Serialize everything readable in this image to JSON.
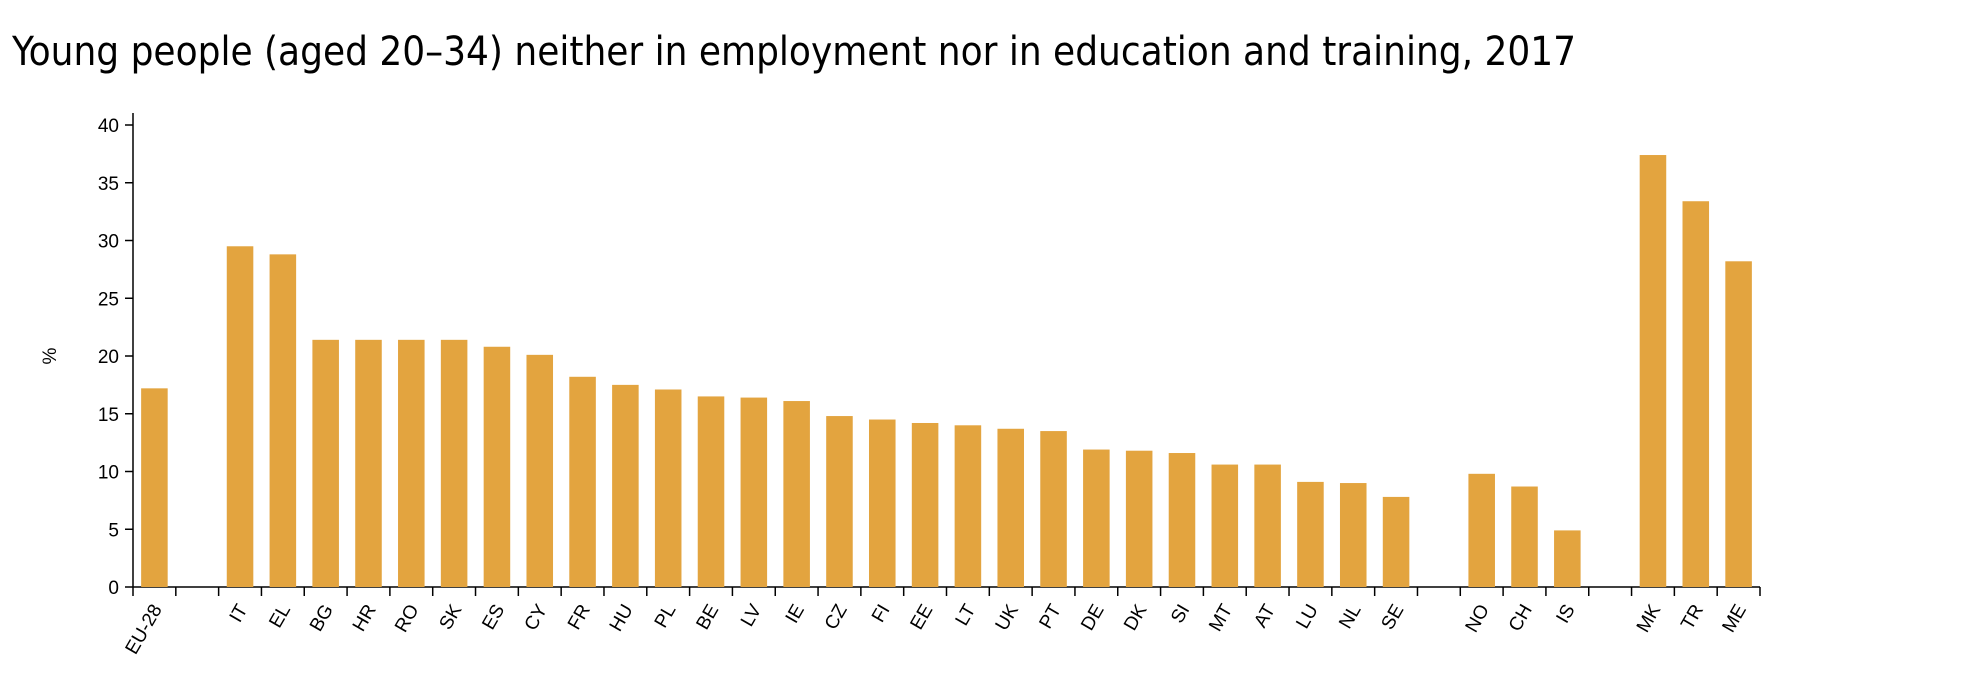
{
  "chart_data": {
    "type": "bar",
    "title": "Young people (aged 20–34) neither in employment nor in education and training, 2017",
    "y_label": "%",
    "categories": [
      "EU-28",
      null,
      "IT",
      "EL",
      "BG",
      "HR",
      "RO",
      "SK",
      "ES",
      "CY",
      "FR",
      "HU",
      "PL",
      "BE",
      "LV",
      "IE",
      "CZ",
      "FI",
      "EE",
      "LT",
      "UK",
      "PT",
      "DE",
      "DK",
      "SI",
      "MT",
      "AT",
      "LU",
      "NL",
      "SE",
      null,
      "NO",
      "CH",
      "IS",
      null,
      "MK",
      "TR",
      "ME"
    ],
    "values": [
      17.2,
      null,
      29.5,
      28.8,
      21.4,
      21.4,
      21.4,
      21.4,
      20.8,
      20.1,
      18.2,
      17.5,
      17.1,
      16.5,
      16.4,
      16.1,
      14.8,
      14.5,
      14.2,
      14.0,
      13.7,
      13.5,
      11.9,
      11.8,
      11.6,
      10.6,
      10.6,
      9.1,
      9.0,
      7.8,
      null,
      9.8,
      8.7,
      4.9,
      null,
      37.4,
      33.4,
      28.2
    ],
    "color": "#e3a43f",
    "ylim": [
      0,
      40
    ],
    "yticks": [
      0,
      5,
      10,
      15,
      20,
      25,
      30,
      35,
      40
    ],
    "grid": false
  }
}
